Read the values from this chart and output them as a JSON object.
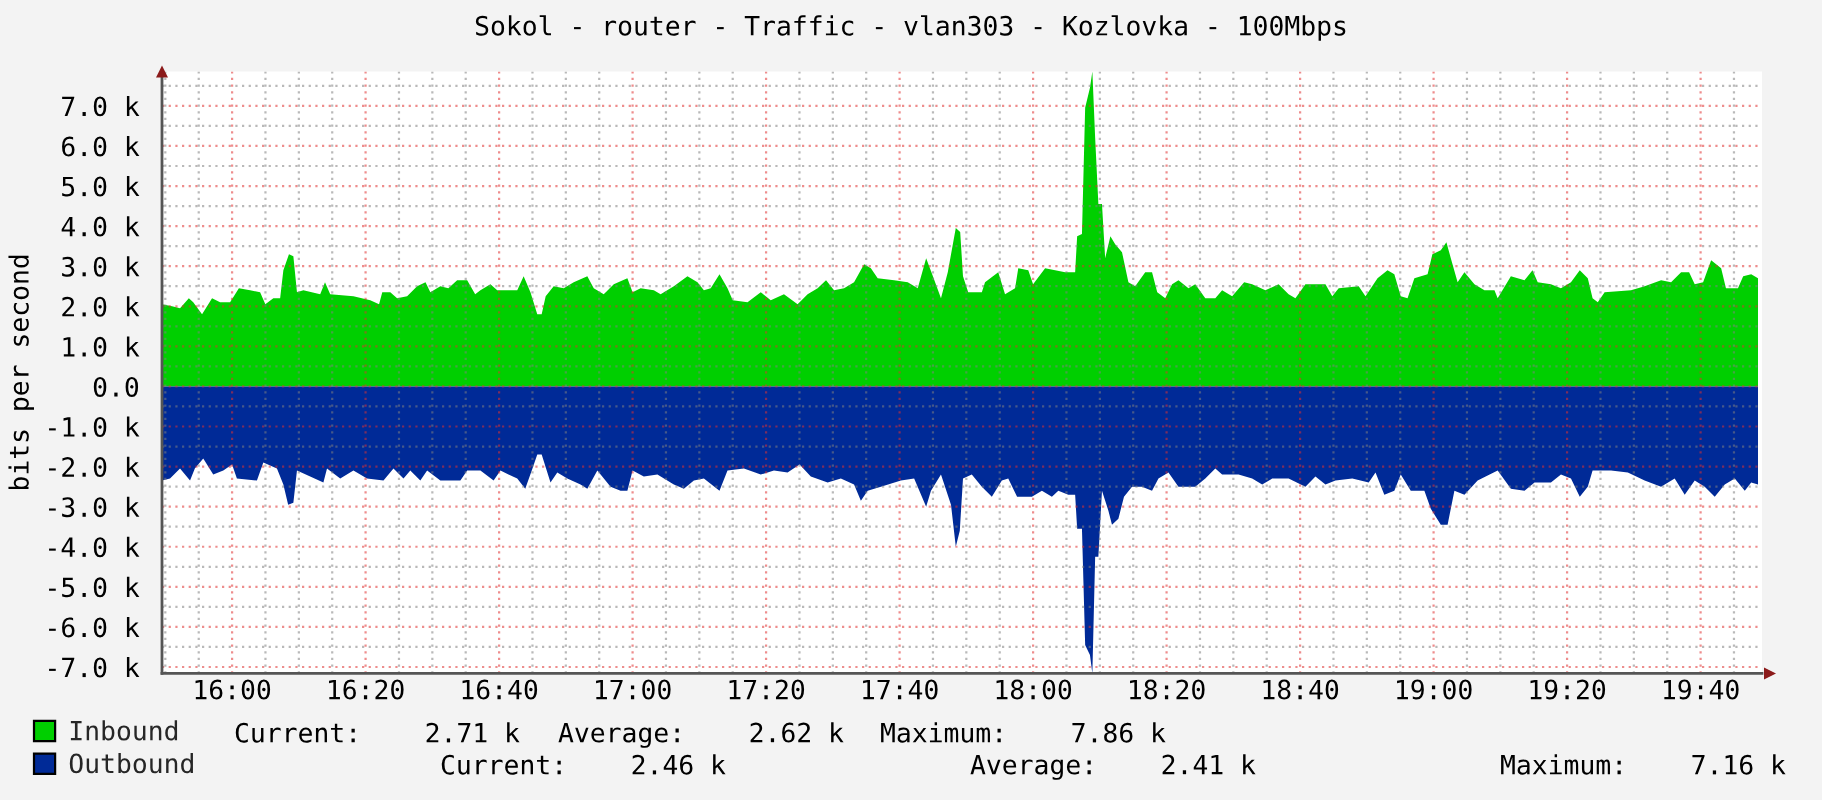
{
  "chart_data": {
    "type": "area",
    "title": "Sokol - router - Traffic - vlan303 - Kozlovka - 100Mbps",
    "ylabel": "bits per second",
    "xlim": [
      15.825,
      19.82
    ],
    "xticks": [
      {
        "value": 15.8333,
        "label": null
      },
      {
        "value": 15.9167,
        "label": null
      },
      {
        "value": 16,
        "label": "16:00"
      },
      {
        "value": 16.0833,
        "label": null
      },
      {
        "value": 16.1667,
        "label": null
      },
      {
        "value": 16.25,
        "label": null
      },
      {
        "value": 16.3333,
        "label": "16:20"
      },
      {
        "value": 16.4167,
        "label": null
      },
      {
        "value": 16.5,
        "label": null
      },
      {
        "value": 16.5833,
        "label": null
      },
      {
        "value": 16.6667,
        "label": "16:40"
      },
      {
        "value": 16.75,
        "label": null
      },
      {
        "value": 16.8333,
        "label": null
      },
      {
        "value": 16.9167,
        "label": null
      },
      {
        "value": 17,
        "label": "17:00"
      },
      {
        "value": 17.0833,
        "label": null
      },
      {
        "value": 17.1667,
        "label": null
      },
      {
        "value": 17.25,
        "label": null
      },
      {
        "value": 17.3333,
        "label": "17:20"
      },
      {
        "value": 17.4167,
        "label": null
      },
      {
        "value": 17.5,
        "label": null
      },
      {
        "value": 17.5833,
        "label": null
      },
      {
        "value": 17.6667,
        "label": "17:40"
      },
      {
        "value": 17.75,
        "label": null
      },
      {
        "value": 17.8333,
        "label": null
      },
      {
        "value": 17.9167,
        "label": null
      },
      {
        "value": 18,
        "label": "18:00"
      },
      {
        "value": 18.0833,
        "label": null
      },
      {
        "value": 18.1667,
        "label": null
      },
      {
        "value": 18.25,
        "label": null
      },
      {
        "value": 18.3333,
        "label": "18:20"
      },
      {
        "value": 18.4167,
        "label": null
      },
      {
        "value": 18.5,
        "label": null
      },
      {
        "value": 18.5833,
        "label": null
      },
      {
        "value": 18.6667,
        "label": "18:40"
      },
      {
        "value": 18.75,
        "label": null
      },
      {
        "value": 18.8333,
        "label": null
      },
      {
        "value": 18.9167,
        "label": null
      },
      {
        "value": 19,
        "label": "19:00"
      },
      {
        "value": 19.0833,
        "label": null
      },
      {
        "value": 19.1667,
        "label": null
      },
      {
        "value": 19.25,
        "label": null
      },
      {
        "value": 19.3333,
        "label": "19:20"
      },
      {
        "value": 19.4167,
        "label": null
      },
      {
        "value": 19.5,
        "label": null
      },
      {
        "value": 19.5833,
        "label": null
      },
      {
        "value": 19.6667,
        "label": "19:40"
      },
      {
        "value": 19.75,
        "label": null
      }
    ],
    "ylim": [
      -7160,
      7860
    ],
    "yticks": [
      {
        "value": -7000,
        "label": "-7.0 k"
      },
      {
        "value": -6500,
        "label": null
      },
      {
        "value": -6000,
        "label": "-6.0 k"
      },
      {
        "value": -5500,
        "label": null
      },
      {
        "value": -5000,
        "label": "-5.0 k"
      },
      {
        "value": -4500,
        "label": null
      },
      {
        "value": -4000,
        "label": "-4.0 k"
      },
      {
        "value": -3500,
        "label": null
      },
      {
        "value": -3000,
        "label": "-3.0 k"
      },
      {
        "value": -2500,
        "label": null
      },
      {
        "value": -2000,
        "label": "-2.0 k"
      },
      {
        "value": -1500,
        "label": null
      },
      {
        "value": -1000,
        "label": "-1.0 k"
      },
      {
        "value": -500,
        "label": null
      },
      {
        "value": 0,
        "label": "0.0"
      },
      {
        "value": 500,
        "label": null
      },
      {
        "value": 1000,
        "label": "1.0 k"
      },
      {
        "value": 1500,
        "label": null
      },
      {
        "value": 2000,
        "label": "2.0 k"
      },
      {
        "value": 2500,
        "label": null
      },
      {
        "value": 3000,
        "label": "3.0 k"
      },
      {
        "value": 3500,
        "label": null
      },
      {
        "value": 4000,
        "label": "4.0 k"
      },
      {
        "value": 4500,
        "label": null
      },
      {
        "value": 5000,
        "label": "5.0 k"
      },
      {
        "value": 5500,
        "label": null
      },
      {
        "value": 6000,
        "label": "6.0 k"
      },
      {
        "value": 6500,
        "label": null
      },
      {
        "value": 7000,
        "label": "7.0 k"
      },
      {
        "value": 7500,
        "label": null
      }
    ],
    "grid": true,
    "legend": "bottom",
    "series": [
      {
        "name": "Inbound",
        "color": "#00cf00",
        "x": [
          15.825,
          15.85,
          15.87,
          15.892,
          15.903,
          15.925,
          15.95,
          15.97,
          15.995,
          16.017,
          16.045,
          16.07,
          16.083,
          16.103,
          16.12,
          16.128,
          16.142,
          16.153,
          16.162,
          16.178,
          16.22,
          16.232,
          16.245,
          16.303,
          16.345,
          16.367,
          16.375,
          16.395,
          16.412,
          16.437,
          16.462,
          16.483,
          16.495,
          16.52,
          16.54,
          16.562,
          16.587,
          16.607,
          16.62,
          16.645,
          16.662,
          16.712,
          16.728,
          16.745,
          16.762,
          16.773,
          16.783,
          16.803,
          16.828,
          16.853,
          16.887,
          16.903,
          16.928,
          16.953,
          16.987,
          17.0,
          17.02,
          17.053,
          17.07,
          17.103,
          17.137,
          17.162,
          17.178,
          17.195,
          17.217,
          17.237,
          17.25,
          17.287,
          17.32,
          17.345,
          17.378,
          17.412,
          17.437,
          17.462,
          17.483,
          17.503,
          17.528,
          17.553,
          17.578,
          17.595,
          17.612,
          17.653,
          17.687,
          17.712,
          17.733,
          17.748,
          17.77,
          17.787,
          17.807,
          17.818,
          17.825,
          17.838,
          17.872,
          17.88,
          17.913,
          17.93,
          17.955,
          17.963,
          17.988,
          18.0,
          18.03,
          18.08,
          18.105,
          18.11,
          18.122,
          18.13,
          18.142,
          18.148,
          18.155,
          18.163,
          18.172,
          18.18,
          18.193,
          18.205,
          18.222,
          18.238,
          18.255,
          18.28,
          18.297,
          18.31,
          18.33,
          18.347,
          18.363,
          18.388,
          18.405,
          18.43,
          18.455,
          18.472,
          18.497,
          18.527,
          18.547,
          18.58,
          18.613,
          18.638,
          18.655,
          18.68,
          18.73,
          18.747,
          18.763,
          18.813,
          18.83,
          18.86,
          18.885,
          18.902,
          18.918,
          18.935,
          18.952,
          18.985,
          18.997,
          19.018,
          19.032,
          19.043,
          19.06,
          19.077,
          19.102,
          19.127,
          19.152,
          19.16,
          19.193,
          19.227,
          19.247,
          19.26,
          19.293,
          19.318,
          19.343,
          19.365,
          19.385,
          19.397,
          19.41,
          19.427,
          19.493,
          19.527,
          19.568,
          19.593,
          19.618,
          19.638,
          19.652,
          19.673,
          19.693,
          19.718,
          19.73,
          19.76,
          19.773,
          19.793,
          19.81
        ],
        "values": [
          2050,
          2000,
          1950,
          2200,
          2100,
          1800,
          2200,
          2100,
          2100,
          2450,
          2400,
          2350,
          2050,
          2200,
          2200,
          2900,
          3300,
          3250,
          2350,
          2400,
          2300,
          2600,
          2300,
          2250,
          2150,
          2050,
          2350,
          2350,
          2200,
          2250,
          2500,
          2600,
          2350,
          2500,
          2450,
          2650,
          2650,
          2300,
          2400,
          2550,
          2400,
          2400,
          2750,
          2350,
          1800,
          1800,
          2250,
          2500,
          2450,
          2600,
          2750,
          2450,
          2300,
          2550,
          2700,
          2350,
          2450,
          2400,
          2300,
          2500,
          2750,
          2600,
          2400,
          2450,
          2800,
          2450,
          2150,
          2100,
          2350,
          2150,
          2300,
          2050,
          2300,
          2450,
          2650,
          2400,
          2450,
          2600,
          3050,
          2950,
          2700,
          2650,
          2600,
          2450,
          3200,
          2800,
          2200,
          2850,
          3950,
          3850,
          2750,
          2350,
          2350,
          2600,
          2850,
          2300,
          2450,
          2950,
          2900,
          2550,
          2950,
          2850,
          2850,
          3750,
          3800,
          6950,
          7450,
          7860,
          6200,
          4550,
          4550,
          3200,
          3750,
          3550,
          3350,
          2600,
          2500,
          2850,
          2850,
          2350,
          2200,
          2550,
          2650,
          2450,
          2550,
          2200,
          2200,
          2400,
          2250,
          2600,
          2550,
          2400,
          2550,
          2300,
          2200,
          2550,
          2550,
          2250,
          2450,
          2500,
          2250,
          2700,
          2900,
          2800,
          2250,
          2200,
          2700,
          2800,
          3300,
          3400,
          3600,
          3200,
          2600,
          2850,
          2550,
          2400,
          2400,
          2200,
          2750,
          2650,
          2900,
          2600,
          2550,
          2450,
          2600,
          2900,
          2700,
          2200,
          2100,
          2350,
          2400,
          2500,
          2650,
          2600,
          2850,
          2850,
          2550,
          2600,
          3150,
          2950,
          2450,
          2450,
          2750,
          2800,
          2700
        ]
      },
      {
        "name": "Outbound",
        "color": "#002a97",
        "x": [
          15.825,
          15.845,
          15.87,
          15.895,
          15.907,
          15.928,
          15.953,
          15.978,
          16.0,
          16.012,
          16.062,
          16.078,
          16.112,
          16.128,
          16.14,
          16.153,
          16.162,
          16.195,
          16.228,
          16.237,
          16.27,
          16.303,
          16.337,
          16.378,
          16.403,
          16.428,
          16.445,
          16.47,
          16.487,
          16.52,
          16.57,
          16.587,
          16.62,
          16.653,
          16.67,
          16.712,
          16.732,
          16.75,
          16.762,
          16.773,
          16.795,
          16.812,
          16.837,
          16.87,
          16.887,
          16.912,
          16.945,
          16.97,
          16.987,
          17.0,
          17.028,
          17.062,
          17.103,
          17.128,
          17.153,
          17.178,
          17.217,
          17.237,
          17.278,
          17.32,
          17.353,
          17.387,
          17.417,
          17.445,
          17.487,
          17.52,
          17.553,
          17.57,
          17.587,
          17.62,
          17.67,
          17.703,
          17.733,
          17.745,
          17.77,
          17.795,
          17.807,
          17.817,
          17.825,
          17.847,
          17.872,
          17.897,
          17.922,
          17.938,
          17.96,
          17.997,
          18.022,
          18.047,
          18.063,
          18.088,
          18.105,
          18.11,
          18.122,
          18.13,
          18.142,
          18.148,
          18.155,
          18.163,
          18.172,
          18.188,
          18.197,
          18.213,
          18.227,
          18.247,
          18.272,
          18.297,
          18.313,
          18.338,
          18.363,
          18.405,
          18.43,
          18.455,
          18.472,
          18.513,
          18.547,
          18.572,
          18.597,
          18.638,
          18.68,
          18.705,
          18.73,
          18.755,
          18.797,
          18.838,
          18.855,
          18.877,
          18.902,
          18.918,
          18.943,
          18.977,
          18.993,
          19.018,
          19.035,
          19.052,
          19.077,
          19.11,
          19.16,
          19.193,
          19.227,
          19.252,
          19.293,
          19.318,
          19.343,
          19.365,
          19.385,
          19.397,
          19.443,
          19.485,
          19.527,
          19.568,
          19.602,
          19.627,
          19.652,
          19.677,
          19.702,
          19.727,
          19.752,
          19.777,
          19.793,
          19.81
        ],
        "values": [
          -2350,
          -2300,
          -2050,
          -2350,
          -2050,
          -1800,
          -2200,
          -2100,
          -1950,
          -2300,
          -2350,
          -1900,
          -2050,
          -2450,
          -2950,
          -2900,
          -2100,
          -2250,
          -2400,
          -2050,
          -2300,
          -2100,
          -2300,
          -2350,
          -2050,
          -2300,
          -2100,
          -2350,
          -2100,
          -2350,
          -2350,
          -2100,
          -2100,
          -2350,
          -2100,
          -2300,
          -2550,
          -2050,
          -1700,
          -1700,
          -2400,
          -2150,
          -2300,
          -2450,
          -2550,
          -2100,
          -2500,
          -2600,
          -2600,
          -2100,
          -2250,
          -2200,
          -2450,
          -2550,
          -2350,
          -2300,
          -2600,
          -2100,
          -2050,
          -2200,
          -2100,
          -2150,
          -1950,
          -2250,
          -2400,
          -2300,
          -2450,
          -2850,
          -2600,
          -2500,
          -2350,
          -2300,
          -3000,
          -2600,
          -2200,
          -2950,
          -4000,
          -3600,
          -2300,
          -2200,
          -2500,
          -2750,
          -2350,
          -2300,
          -2750,
          -2750,
          -2600,
          -2750,
          -2600,
          -2700,
          -2700,
          -3550,
          -3550,
          -6450,
          -6700,
          -7160,
          -4250,
          -4250,
          -2600,
          -3100,
          -3450,
          -3300,
          -2750,
          -2500,
          -2500,
          -2600,
          -2300,
          -2150,
          -2500,
          -2500,
          -2300,
          -2050,
          -2200,
          -2200,
          -2300,
          -2450,
          -2300,
          -2300,
          -2500,
          -2250,
          -2450,
          -2350,
          -2300,
          -2400,
          -2150,
          -2700,
          -2600,
          -2200,
          -2600,
          -2600,
          -3050,
          -3450,
          -3450,
          -2600,
          -2700,
          -2350,
          -2100,
          -2550,
          -2600,
          -2400,
          -2400,
          -2200,
          -2300,
          -2750,
          -2500,
          -2100,
          -2100,
          -2150,
          -2350,
          -2500,
          -2300,
          -2700,
          -2350,
          -2500,
          -2750,
          -2450,
          -2300,
          -2600,
          -2400,
          -2450
        ]
      }
    ],
    "annotations": [
      "Current:    2.71 k",
      "Average:    2.62 k",
      "Maximum:    7.86 k",
      "Current:    2.46 k",
      "Average:    2.41 k",
      "Maximum:    7.16 k"
    ]
  }
}
